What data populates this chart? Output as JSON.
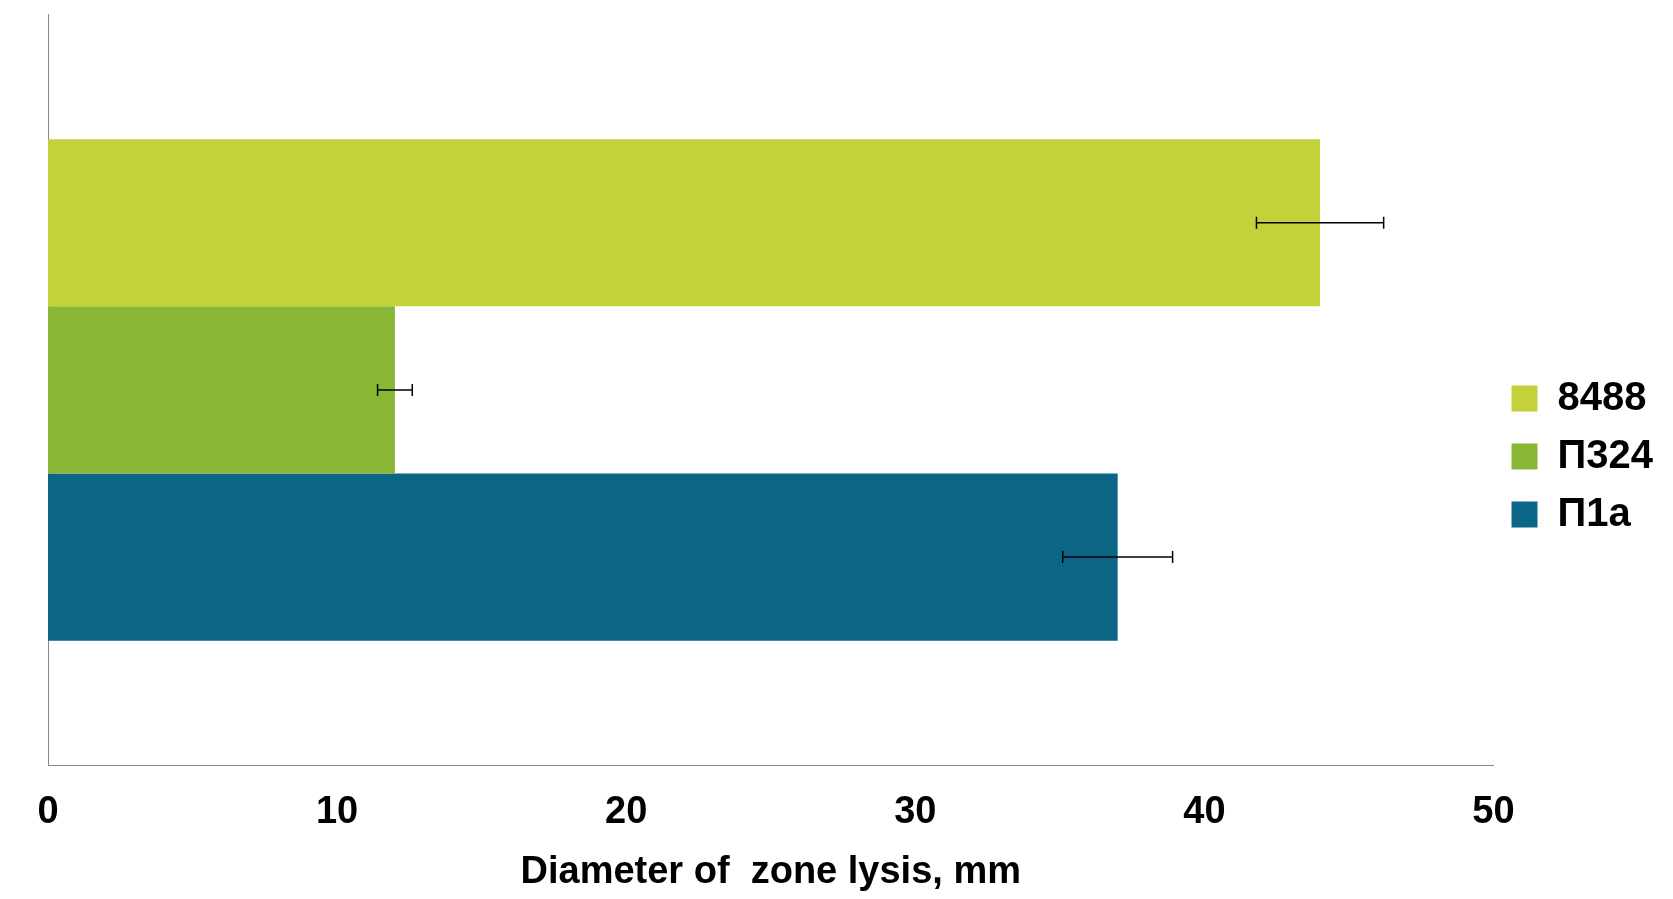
{
  "chart_data": {
    "type": "bar",
    "orientation": "horizontal",
    "xlabel": "Diameter of  zone lysis, mm",
    "categories": [
      null
    ],
    "series": [
      {
        "name": "8488",
        "color": "#c3d13b",
        "values": [
          44
        ],
        "errors": [
          2.2
        ]
      },
      {
        "name": "П324",
        "color": "#8ab636",
        "values": [
          12
        ],
        "errors": [
          0.6
        ]
      },
      {
        "name": "П1а",
        "color": "#0b6685",
        "values": [
          37
        ],
        "errors": [
          1.9
        ]
      }
    ],
    "xlim": [
      0,
      50
    ],
    "xticks": [
      0,
      10,
      20,
      30,
      40,
      50
    ],
    "grid": false,
    "legend": "right"
  }
}
